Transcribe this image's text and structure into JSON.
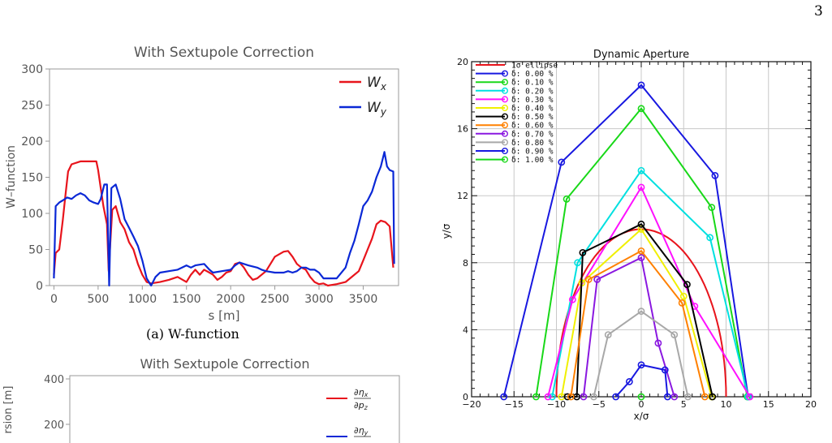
{
  "page": {
    "number": "3"
  },
  "chart_data": [
    {
      "id": "a",
      "type": "line",
      "title": "With Sextupole Correction",
      "xlabel": "s [m]",
      "ylabel": "W–function",
      "xlim": [
        -50,
        3900
      ],
      "ylim": [
        0,
        300
      ],
      "xticks": [
        0,
        500,
        1000,
        1500,
        2000,
        2500,
        3000,
        3500
      ],
      "yticks": [
        0,
        50,
        100,
        150,
        200,
        250,
        300
      ],
      "legend_position": "top-right",
      "caption": "(a) W-function",
      "series": [
        {
          "name": "W_x",
          "color": "#e8141c",
          "points": [
            [
              0,
              15
            ],
            [
              20,
              45
            ],
            [
              60,
              50
            ],
            [
              100,
              90
            ],
            [
              130,
              125
            ],
            [
              160,
              158
            ],
            [
              200,
              168
            ],
            [
              300,
              172
            ],
            [
              400,
              172
            ],
            [
              480,
              172
            ],
            [
              500,
              160
            ],
            [
              530,
              135
            ],
            [
              560,
              110
            ],
            [
              600,
              85
            ],
            [
              620,
              20
            ],
            [
              660,
              105
            ],
            [
              700,
              110
            ],
            [
              750,
              88
            ],
            [
              800,
              78
            ],
            [
              850,
              60
            ],
            [
              900,
              50
            ],
            [
              950,
              30
            ],
            [
              1000,
              15
            ],
            [
              1050,
              5
            ],
            [
              1100,
              3
            ],
            [
              1200,
              5
            ],
            [
              1300,
              8
            ],
            [
              1400,
              12
            ],
            [
              1500,
              5
            ],
            [
              1550,
              15
            ],
            [
              1600,
              22
            ],
            [
              1650,
              15
            ],
            [
              1700,
              22
            ],
            [
              1760,
              18
            ],
            [
              1800,
              15
            ],
            [
              1850,
              8
            ],
            [
              1900,
              12
            ],
            [
              1950,
              18
            ],
            [
              2000,
              20
            ],
            [
              2050,
              30
            ],
            [
              2100,
              32
            ],
            [
              2150,
              25
            ],
            [
              2200,
              15
            ],
            [
              2250,
              8
            ],
            [
              2300,
              10
            ],
            [
              2400,
              20
            ],
            [
              2500,
              40
            ],
            [
              2600,
              47
            ],
            [
              2650,
              48
            ],
            [
              2700,
              40
            ],
            [
              2750,
              30
            ],
            [
              2800,
              25
            ],
            [
              2850,
              22
            ],
            [
              2900,
              12
            ],
            [
              2950,
              5
            ],
            [
              3000,
              2
            ],
            [
              3050,
              3
            ],
            [
              3100,
              0
            ],
            [
              3200,
              2
            ],
            [
              3300,
              5
            ],
            [
              3400,
              15
            ],
            [
              3450,
              20
            ],
            [
              3500,
              35
            ],
            [
              3550,
              50
            ],
            [
              3600,
              65
            ],
            [
              3650,
              85
            ],
            [
              3700,
              90
            ],
            [
              3750,
              88
            ],
            [
              3800,
              82
            ],
            [
              3840,
              25
            ]
          ]
        },
        {
          "name": "W_y",
          "color": "#0a28d6",
          "points": [
            [
              0,
              10
            ],
            [
              20,
              110
            ],
            [
              60,
              115
            ],
            [
              100,
              118
            ],
            [
              150,
              122
            ],
            [
              200,
              120
            ],
            [
              250,
              125
            ],
            [
              300,
              128
            ],
            [
              350,
              125
            ],
            [
              400,
              118
            ],
            [
              450,
              115
            ],
            [
              500,
              113
            ],
            [
              530,
              120
            ],
            [
              570,
              140
            ],
            [
              600,
              140
            ],
            [
              625,
              0
            ],
            [
              650,
              135
            ],
            [
              700,
              140
            ],
            [
              750,
              120
            ],
            [
              800,
              92
            ],
            [
              850,
              80
            ],
            [
              900,
              68
            ],
            [
              950,
              55
            ],
            [
              1000,
              35
            ],
            [
              1050,
              10
            ],
            [
              1100,
              0
            ],
            [
              1150,
              12
            ],
            [
              1200,
              18
            ],
            [
              1300,
              20
            ],
            [
              1400,
              22
            ],
            [
              1450,
              25
            ],
            [
              1500,
              28
            ],
            [
              1550,
              25
            ],
            [
              1600,
              28
            ],
            [
              1700,
              30
            ],
            [
              1760,
              22
            ],
            [
              1800,
              18
            ],
            [
              1900,
              20
            ],
            [
              2000,
              22
            ],
            [
              2050,
              28
            ],
            [
              2100,
              32
            ],
            [
              2150,
              30
            ],
            [
              2200,
              28
            ],
            [
              2300,
              25
            ],
            [
              2350,
              22
            ],
            [
              2400,
              20
            ],
            [
              2500,
              18
            ],
            [
              2600,
              18
            ],
            [
              2650,
              20
            ],
            [
              2700,
              18
            ],
            [
              2750,
              20
            ],
            [
              2800,
              25
            ],
            [
              2850,
              25
            ],
            [
              2900,
              22
            ],
            [
              2950,
              22
            ],
            [
              3000,
              18
            ],
            [
              3050,
              10
            ],
            [
              3100,
              10
            ],
            [
              3200,
              10
            ],
            [
              3300,
              25
            ],
            [
              3350,
              45
            ],
            [
              3400,
              62
            ],
            [
              3450,
              85
            ],
            [
              3500,
              110
            ],
            [
              3550,
              118
            ],
            [
              3600,
              130
            ],
            [
              3650,
              150
            ],
            [
              3700,
              165
            ],
            [
              3740,
              185
            ],
            [
              3770,
              165
            ],
            [
              3800,
              160
            ],
            [
              3840,
              158
            ],
            [
              3850,
              30
            ]
          ]
        }
      ]
    },
    {
      "id": "b",
      "type": "line",
      "title": "Dynamic Aperture",
      "xlabel": "x/σ",
      "ylabel": "y/σ",
      "xlim": [
        -20,
        20
      ],
      "ylim": [
        0,
        20
      ],
      "xticks": [
        -20,
        -15,
        -10,
        -5,
        0,
        5,
        10,
        15,
        20
      ],
      "yticks": [
        0,
        4,
        8,
        12,
        16,
        20
      ],
      "legend_position": "top-left",
      "ellipse": {
        "name": "1σ  ellipse",
        "color": "#e8141c",
        "a": 10,
        "b": 10
      },
      "series": [
        {
          "name": "δ:  0.00 %",
          "color": "#1818e0",
          "points": [
            [
              -16.2,
              0
            ],
            [
              -9.4,
              14
            ],
            [
              0,
              18.6
            ],
            [
              8.7,
              13.2
            ],
            [
              12.6,
              0
            ]
          ]
        },
        {
          "name": "δ:  0.10 %",
          "color": "#18d818",
          "points": [
            [
              -12.4,
              0
            ],
            [
              -8.8,
              11.8
            ],
            [
              0,
              17.2
            ],
            [
              8.3,
              11.3
            ],
            [
              12.5,
              0
            ]
          ]
        },
        {
          "name": "δ:  0.20 %",
          "color": "#00e0e0",
          "points": [
            [
              -10.5,
              0
            ],
            [
              -7.5,
              8
            ],
            [
              0,
              13.5
            ],
            [
              8.1,
              9.5
            ],
            [
              12.6,
              0
            ]
          ]
        },
        {
          "name": "δ:  0.30 %",
          "color": "#ff10ff",
          "points": [
            [
              -11,
              0
            ],
            [
              -8.1,
              5.8
            ],
            [
              0,
              12.5
            ],
            [
              6.3,
              5.4
            ],
            [
              12.8,
              0
            ]
          ]
        },
        {
          "name": "δ:  0.40 %",
          "color": "#f0f000",
          "points": [
            [
              -9.4,
              0
            ],
            [
              -7,
              6.8
            ],
            [
              0,
              10
            ],
            [
              5,
              6
            ],
            [
              8.3,
              0
            ]
          ]
        },
        {
          "name": "δ:  0.50 %",
          "color": "#000000",
          "points": [
            [
              -8.7,
              0
            ],
            [
              -7.6,
              0
            ],
            [
              -6.9,
              8.6
            ],
            [
              0,
              10.3
            ],
            [
              5.4,
              6.7
            ],
            [
              8.4,
              0
            ]
          ]
        },
        {
          "name": "δ:  0.60 %",
          "color": "#ff8000",
          "points": [
            [
              -8.3,
              0
            ],
            [
              -6.2,
              7
            ],
            [
              0,
              8.7
            ],
            [
              4.8,
              5.6
            ],
            [
              7.5,
              0
            ]
          ]
        },
        {
          "name": "δ:  0.70 %",
          "color": "#8a18e0",
          "points": [
            [
              -6.8,
              0
            ],
            [
              -5.2,
              7
            ],
            [
              0,
              8.3
            ],
            [
              2,
              3.2
            ],
            [
              3.9,
              0
            ]
          ]
        },
        {
          "name": "δ:  0.80 %",
          "color": "#a8a8a8",
          "points": [
            [
              -5.6,
              0
            ],
            [
              -3.9,
              3.7
            ],
            [
              0,
              5.1
            ],
            [
              3.9,
              3.7
            ],
            [
              5.5,
              0
            ]
          ]
        },
        {
          "name": "δ:  0.90 %",
          "color": "#1818e0",
          "points": [
            [
              -3,
              0
            ],
            [
              -1.4,
              0.9
            ],
            [
              0,
              1.9
            ],
            [
              2.8,
              1.6
            ],
            [
              3.1,
              0
            ]
          ]
        },
        {
          "name": "δ:  1.00 %",
          "color": "#18d818",
          "points": [
            [
              0,
              0
            ]
          ]
        }
      ]
    },
    {
      "id": "c",
      "type": "line",
      "title": "With Sextupole Correction",
      "ylabel": "rsion [m]",
      "yticks": [
        200,
        400
      ],
      "legend_position": "top-right",
      "series": [
        {
          "name": "∂η_x/∂p_z",
          "color": "#e8141c",
          "points": []
        },
        {
          "name": "∂η_y/∂p_z",
          "color": "#0a28d6",
          "points": []
        }
      ]
    }
  ]
}
